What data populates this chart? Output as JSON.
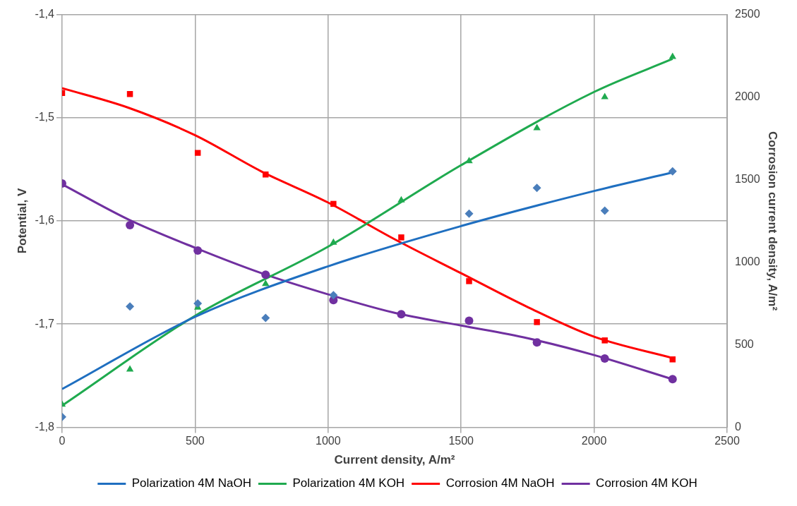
{
  "chart_data": {
    "type": "scatter",
    "xlabel": "Current density, A/m²",
    "ylabel": "Potential, V",
    "y2label": "Corrosion current density, A/m²",
    "x": [
      0,
      255,
      510,
      765,
      1020,
      1275,
      1530,
      1785,
      2040,
      2295
    ],
    "xlim": [
      0,
      2500
    ],
    "xticks": [
      0,
      500,
      1000,
      1500,
      2000,
      2500
    ],
    "ylim": [
      -1.8,
      -1.4
    ],
    "yticks": [
      {
        "value": -1.8,
        "label": "-1,8"
      },
      {
        "value": -1.7,
        "label": "-1,7"
      },
      {
        "value": -1.6,
        "label": "-1,6"
      },
      {
        "value": -1.5,
        "label": "-1,5"
      },
      {
        "value": -1.4,
        "label": "-1,4"
      }
    ],
    "y2lim": [
      0,
      2500
    ],
    "y2ticks": [
      0,
      500,
      1000,
      1500,
      2000,
      2500
    ],
    "grid": true,
    "legend": "bottom",
    "series": [
      {
        "type": "scatter",
        "marker": "diamond",
        "color": "#4a7ebb",
        "values": [
          -1.79,
          -1.683,
          -1.68,
          -1.694,
          -1.672,
          null,
          -1.593,
          -1.568,
          -1.59,
          -1.552
        ]
      },
      {
        "type": "scatter",
        "marker": "triangle",
        "color": "#1faa4f",
        "values": [
          -1.778,
          -1.744,
          -1.684,
          -1.661,
          -1.621,
          -1.58,
          -1.542,
          -1.51,
          -1.48,
          -1.441
        ]
      },
      {
        "type": "scatter",
        "marker": "square",
        "axis": "y2",
        "color": "#ff0000",
        "values": [
          2025,
          2018,
          1662,
          1531,
          1353,
          1150,
          885,
          637,
          526,
          411
        ]
      },
      {
        "type": "scatter",
        "marker": "circle",
        "axis": "y2",
        "color": "#7030a0",
        "values": [
          1477,
          1224,
          1070,
          924,
          770,
          685,
          645,
          514,
          416,
          291
        ]
      },
      {
        "type": "line",
        "name": "Polarization 4M NaOH",
        "marker": "none",
        "color": "#1f6fc0",
        "x": [
          0,
          500,
          1000,
          1500,
          2000,
          2295
        ],
        "values": [
          -1.763,
          -1.693,
          -1.644,
          -1.605,
          -1.571,
          -1.553
        ]
      },
      {
        "type": "line",
        "name": "Polarization 4M KOH",
        "marker": "none",
        "color": "#1faa4f",
        "x": [
          0,
          500,
          1000,
          1500,
          2000,
          2295
        ],
        "values": [
          -1.779,
          -1.692,
          -1.625,
          -1.546,
          -1.475,
          -1.443
        ]
      },
      {
        "type": "line",
        "name": "Corrosion 4M NaOH",
        "marker": "none",
        "axis": "y2",
        "color": "#ff0000",
        "x": [
          0,
          250,
          500,
          750,
          1000,
          1250,
          1500,
          1750,
          2000,
          2295
        ],
        "values": [
          2054,
          1935,
          1769,
          1549,
          1361,
          1139,
          933,
          728,
          548,
          419
        ]
      },
      {
        "type": "line",
        "name": "Corrosion 4M KOH",
        "marker": "none",
        "axis": "y2",
        "color": "#7030a0",
        "x": [
          0,
          250,
          500,
          750,
          1000,
          1250,
          1500,
          1750,
          2000,
          2295
        ],
        "values": [
          1472,
          1258,
          1087,
          933,
          805,
          693,
          616,
          539,
          437,
          291
        ]
      }
    ]
  }
}
